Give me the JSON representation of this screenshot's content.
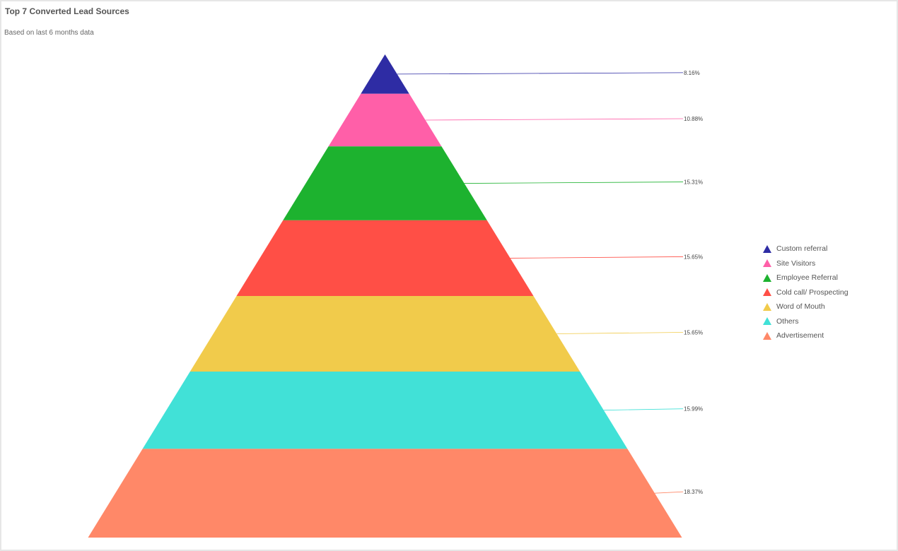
{
  "chart_data": {
    "type": "pyramid",
    "title": "Top 7 Converted Lead Sources",
    "subtitle": "Based on last 6 months data",
    "legend_position": "right",
    "series": [
      {
        "name": "Custom referral",
        "value": 8.16,
        "label": "8.16%",
        "color": "#2e2ca4"
      },
      {
        "name": "Site Visitors",
        "value": 10.88,
        "label": "10.88%",
        "color": "#ff5fa8"
      },
      {
        "name": "Employee Referral",
        "value": 15.31,
        "label": "15.31%",
        "color": "#1db22f"
      },
      {
        "name": "Cold call/ Prospecting",
        "value": 15.65,
        "label": "15.65%",
        "color": "#ff4f46"
      },
      {
        "name": "Word of Mouth",
        "value": 15.65,
        "label": "15.65%",
        "color": "#f1cb4b"
      },
      {
        "name": "Others",
        "value": 15.99,
        "label": "15.99%",
        "color": "#41e1d7"
      },
      {
        "name": "Advertisement",
        "value": 18.37,
        "label": "18.37%",
        "color": "#ff8868"
      }
    ]
  }
}
